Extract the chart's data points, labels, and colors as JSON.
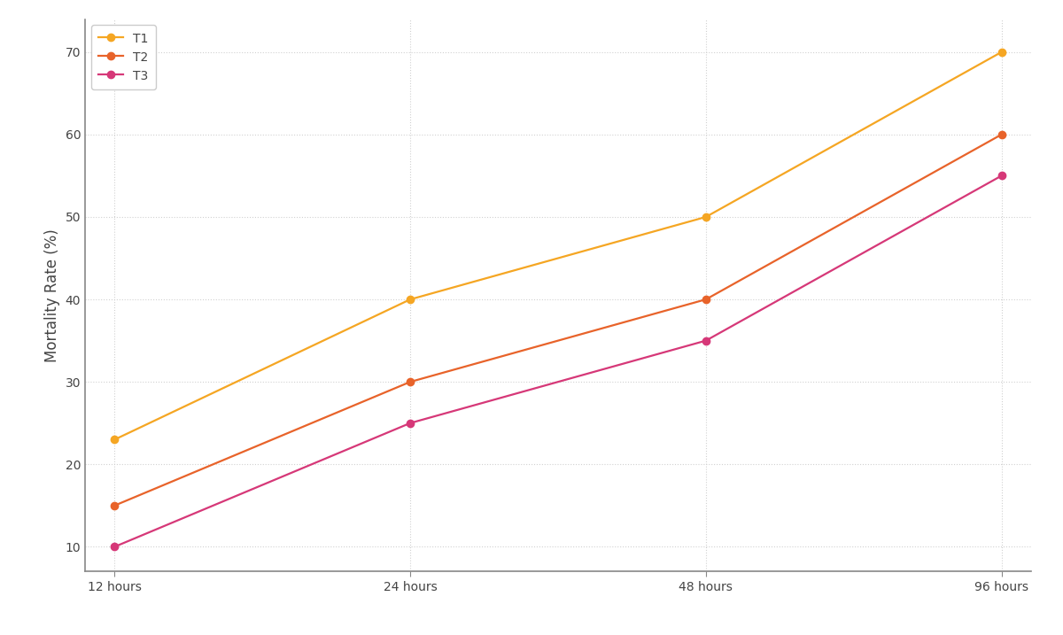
{
  "x_labels": [
    "12 hours",
    "24 hours",
    "48 hours",
    "96 hours"
  ],
  "x_values": [
    0,
    1,
    2,
    3
  ],
  "series": [
    {
      "label": "T1",
      "values": [
        23,
        40,
        50,
        70
      ],
      "color": "#F5A623",
      "marker": "o",
      "linewidth": 1.6,
      "markersize": 6
    },
    {
      "label": "T2",
      "values": [
        15,
        30,
        40,
        60
      ],
      "color": "#E8632A",
      "marker": "o",
      "linewidth": 1.6,
      "markersize": 6
    },
    {
      "label": "T3",
      "values": [
        10,
        25,
        35,
        55
      ],
      "color": "#D63878",
      "marker": "o",
      "linewidth": 1.6,
      "markersize": 6
    }
  ],
  "ylabel": "Mortality Rate (%)",
  "ylim": [
    7,
    74
  ],
  "yticks": [
    10,
    20,
    30,
    40,
    50,
    60,
    70
  ],
  "grid_color": "#cccccc",
  "grid_linestyle": ":",
  "grid_alpha": 0.9,
  "background_color": "#ffffff",
  "legend_fontsize": 10,
  "ylabel_fontsize": 12,
  "tick_fontsize": 10,
  "spine_color": "#888888",
  "tick_color": "#444444"
}
